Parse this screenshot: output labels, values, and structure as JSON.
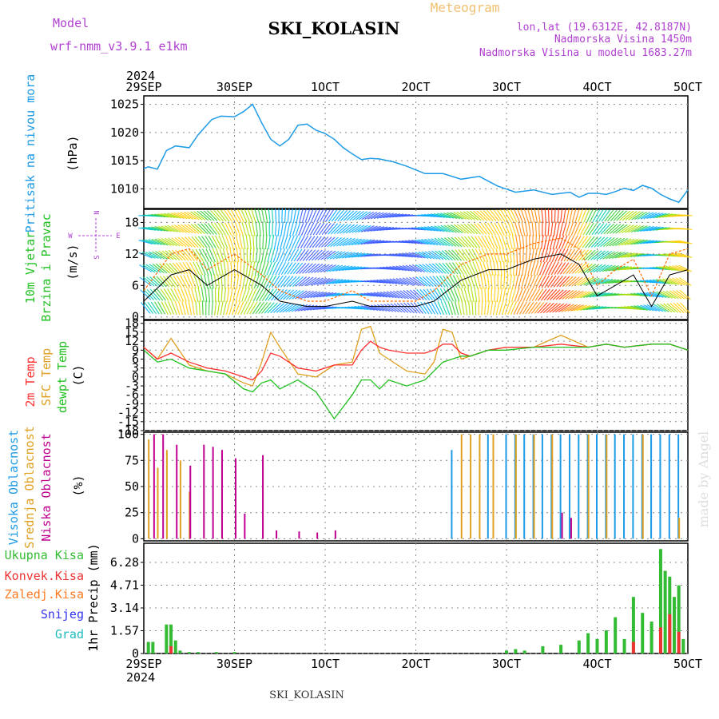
{
  "header": {
    "model_label": "Model",
    "model_name": "wrf-nmm_v3.9.1  e1km",
    "title": "SKI_KOLASIN",
    "meteogram_label": "Meteogram",
    "location": "lon,lat (19.6312E, 42.8187N)",
    "elevation": "Nadmorska Visina 1450m",
    "model_elevation": "Nadmorska Visina u modelu 1683.27m",
    "footer_title": "SKI_KOLASIN",
    "credit": "made by Angel"
  },
  "colors": {
    "pressure": "#1e9be6",
    "wind_speed_line": "#000000",
    "wind_gust": "#ff6a00",
    "temp2m": "#ff3030",
    "sfc_temp": "#e0a020",
    "dewpoint": "#22c022",
    "high_cloud": "#1e9be6",
    "mid_cloud": "#e0a020",
    "low_cloud": "#c00090",
    "total_precip": "#33bb33",
    "conv_precip": "#ee3333",
    "frozen_precip": "#ff7a22",
    "snow": "#3333ee",
    "graupel": "#22bbbb",
    "credit": "#dddddd"
  },
  "x_axis": {
    "year": "2024",
    "ticks": [
      "29SEP",
      "30SEP",
      "1OCT",
      "2OCT",
      "3OCT",
      "4OCT",
      "5OCT"
    ]
  },
  "panels": {
    "pressure": {
      "ylabel1": "Pritisak na nivou mora",
      "unit": "(hPa)",
      "ticks": [
        "1025",
        "1020",
        "1015",
        "1010"
      ]
    },
    "wind": {
      "ylabel1": "10m Vjetar",
      "ylabel2": "Brzina i Pravac",
      "unit": "(m/s)",
      "ticks": [
        "18",
        "12",
        "6",
        "0"
      ],
      "compass_n": "N",
      "compass_s": "S",
      "compass_w": "W",
      "compass_e": "E"
    },
    "temperature": {
      "ylabel1": "2m Temp",
      "ylabel2": "SFC Temp",
      "ylabel3": "dewpt Temp",
      "unit": "(C)",
      "ticks": [
        "18",
        "15",
        "12",
        "9",
        "6",
        "3",
        "0",
        "-3",
        "-6",
        "-9",
        "-12",
        "-15",
        "-18"
      ]
    },
    "clouds": {
      "ylabel1": "Visoka Oblacnost",
      "ylabel2": "Srednja Oblacnost",
      "ylabel3": "Niska Oblacnost",
      "unit": "(%)",
      "ticks": [
        "100",
        "75",
        "50",
        "25",
        "0"
      ]
    },
    "precip": {
      "legend1": "Ukupna Kisa",
      "legend2": "Konvek.Kisa",
      "legend3": "Zaledj.Kisa",
      "legend4": "Snijeg",
      "legend5": "Grad",
      "ylabel": "1hr Precip (mm)",
      "ticks": [
        "6.28",
        "4.71",
        "3.14",
        "1.57",
        "0"
      ]
    }
  },
  "chart_data": [
    {
      "type": "line",
      "title": "Pritisak na nivou mora",
      "ylabel": "(hPa)",
      "ylim": [
        1006.5,
        1026.5
      ],
      "x_unit": "days since 29SEP 00UTC",
      "series": [
        {
          "name": "Pritisak na nivou mora",
          "x": [
            0,
            0.05,
            0.15,
            0.25,
            0.35,
            0.5,
            0.6,
            0.75,
            0.85,
            1.0,
            1.1,
            1.2,
            1.3,
            1.4,
            1.5,
            1.6,
            1.7,
            1.8,
            1.9,
            2.0,
            2.1,
            2.2,
            2.3,
            2.4,
            2.5,
            2.6,
            2.75,
            2.9,
            3.1,
            3.3,
            3.5,
            3.7,
            3.9,
            4.1,
            4.3,
            4.5,
            4.7,
            4.8,
            4.9,
            5.0,
            5.1,
            5.2,
            5.3,
            5.4,
            5.5,
            5.6,
            5.7,
            5.8,
            5.9,
            6.0
          ],
          "y": [
            1013.6,
            1013.9,
            1013.5,
            1016.8,
            1017.6,
            1017.3,
            1019.6,
            1022.3,
            1022.9,
            1022.8,
            1023.7,
            1025.0,
            1021.7,
            1018.8,
            1017.6,
            1018.8,
            1021.3,
            1021.5,
            1020.4,
            1019.8,
            1018.8,
            1017.3,
            1016.2,
            1015.2,
            1015.4,
            1015.3,
            1014.8,
            1014.0,
            1012.7,
            1012.7,
            1011.7,
            1012.2,
            1010.5,
            1009.4,
            1009.8,
            1009.0,
            1009.4,
            1008.5,
            1009.2,
            1009.2,
            1009.0,
            1009.5,
            1010.1,
            1009.7,
            1010.6,
            1010.1,
            1009.0,
            1008.2,
            1007.6,
            1009.8
          ]
        }
      ]
    },
    {
      "type": "line",
      "title": "10m Vjetar Brzina i Pravac",
      "ylabel": "(m/s)",
      "ylim": [
        -0.5,
        20.5
      ],
      "series": [
        {
          "name": "10m Vjetar",
          "x": [
            0,
            0.3,
            0.5,
            0.7,
            1.0,
            1.3,
            1.5,
            1.8,
            2.0,
            2.3,
            2.5,
            3.0,
            3.2,
            3.5,
            3.8,
            4.0,
            4.3,
            4.6,
            4.8,
            5.0,
            5.2,
            5.4,
            5.6,
            5.8,
            6.0
          ],
          "y": [
            3,
            8,
            9,
            6,
            9,
            6,
            3,
            2,
            2,
            3,
            2,
            2,
            3,
            7,
            9,
            9,
            11,
            12,
            10,
            4,
            6,
            8,
            2,
            8,
            9
          ]
        },
        {
          "name": "gust",
          "x": [
            0,
            0.3,
            0.5,
            0.7,
            1.0,
            1.3,
            1.5,
            1.8,
            2.0,
            2.3,
            2.5,
            3.0,
            3.2,
            3.5,
            3.8,
            4.0,
            4.3,
            4.6,
            4.8,
            5.0,
            5.2,
            5.4,
            5.6,
            5.8,
            6.0
          ],
          "y": [
            5,
            12,
            13,
            9,
            12,
            8,
            5,
            3,
            3,
            5,
            3,
            3,
            5,
            10,
            12,
            12,
            14,
            15,
            13,
            6,
            9,
            11,
            4,
            12,
            13
          ]
        }
      ]
    },
    {
      "type": "line",
      "title": "2m Temp / SFC Temp / dewpt Temp",
      "ylabel": "(C)",
      "ylim": [
        -18,
        19
      ],
      "series": [
        {
          "name": "2m Temp",
          "x": [
            0,
            0.15,
            0.3,
            0.5,
            0.7,
            0.9,
            1.1,
            1.2,
            1.3,
            1.4,
            1.5,
            1.7,
            1.9,
            2.1,
            2.3,
            2.4,
            2.5,
            2.6,
            2.7,
            2.9,
            3.1,
            3.2,
            3.3,
            3.4,
            3.5,
            3.6,
            3.8,
            4.0,
            4.3,
            4.6,
            4.9,
            5.1,
            5.3,
            5.6,
            5.8,
            6.0
          ],
          "y": [
            10,
            6,
            8,
            5,
            3,
            2,
            0,
            -1,
            2,
            8,
            7,
            3,
            2,
            4,
            4,
            9,
            12,
            10,
            9,
            8,
            8,
            9,
            11,
            11,
            8,
            7,
            9,
            10,
            10,
            11,
            10,
            11,
            10,
            11,
            11,
            9
          ]
        },
        {
          "name": "SFC Temp",
          "x": [
            0,
            0.15,
            0.3,
            0.5,
            0.7,
            0.9,
            1.1,
            1.2,
            1.3,
            1.4,
            1.5,
            1.7,
            1.9,
            2.1,
            2.3,
            2.4,
            2.5,
            2.6,
            2.7,
            2.9,
            3.1,
            3.2,
            3.3,
            3.4,
            3.5,
            3.6,
            3.8,
            4.0,
            4.3,
            4.6,
            4.9,
            5.1,
            5.3,
            5.6,
            5.8,
            6.0
          ],
          "y": [
            10,
            6,
            13,
            4,
            2,
            1,
            -2,
            -3,
            5,
            15,
            10,
            1,
            0,
            4,
            5,
            16,
            17,
            8,
            6,
            2,
            1,
            5,
            16,
            15,
            6,
            7,
            9,
            10,
            10,
            14,
            10,
            11,
            10,
            11,
            11,
            9
          ]
        },
        {
          "name": "dewpt Temp",
          "x": [
            0,
            0.15,
            0.3,
            0.5,
            0.7,
            0.9,
            1.1,
            1.2,
            1.3,
            1.4,
            1.5,
            1.7,
            1.9,
            2.1,
            2.3,
            2.4,
            2.5,
            2.6,
            2.7,
            2.9,
            3.1,
            3.2,
            3.3,
            3.4,
            3.5,
            3.6,
            3.8,
            4.0,
            4.3,
            4.6,
            4.9,
            5.1,
            5.3,
            5.6,
            5.8,
            6.0
          ],
          "y": [
            9,
            5,
            6,
            3,
            2,
            1,
            -4,
            -5,
            -2,
            -1,
            -4,
            -1,
            -5,
            -14,
            -6,
            -1,
            -1,
            -4,
            -1,
            -3,
            -1,
            2,
            5,
            6,
            7,
            7,
            9,
            9,
            10,
            10,
            10,
            11,
            10,
            11,
            11,
            9
          ]
        }
      ]
    },
    {
      "type": "bar",
      "title": "Visoka / Srednja / Niska Oblacnost",
      "ylabel": "(%)",
      "ylim": [
        0,
        100
      ],
      "series": [
        {
          "name": "Visoka Oblacnost",
          "x": [
            3.4,
            3.8,
            4.0,
            4.1,
            4.2,
            4.3,
            4.4,
            4.5,
            4.6,
            4.7,
            4.8,
            4.9,
            5.0,
            5.1,
            5.2,
            5.3,
            5.4,
            5.5,
            5.6,
            5.7,
            5.8,
            5.9
          ],
          "values": [
            85,
            100,
            100,
            100,
            100,
            100,
            100,
            100,
            100,
            100,
            100,
            100,
            100,
            100,
            100,
            100,
            100,
            100,
            100,
            100,
            100,
            100
          ]
        },
        {
          "name": "Srednja Oblacnost",
          "x": [
            0.05,
            0.15,
            0.25,
            0.4,
            0.5,
            3.5,
            3.6,
            3.7,
            3.85,
            4.1,
            4.3,
            4.5,
            4.9,
            5.1,
            5.5,
            5.9
          ],
          "values": [
            95,
            68,
            85,
            75,
            45,
            100,
            100,
            100,
            100,
            100,
            100,
            100,
            100,
            100,
            100,
            20
          ]
        },
        {
          "name": "Niska Oblacnost",
          "x": [
            0.1,
            0.2,
            0.35,
            0.5,
            0.65,
            0.75,
            0.85,
            1.0,
            1.1,
            1.3,
            1.45,
            1.7,
            1.9,
            2.1,
            4.6,
            4.7
          ],
          "values": [
            100,
            100,
            90,
            70,
            90,
            88,
            85,
            77,
            24,
            80,
            8,
            7,
            6,
            8,
            25,
            20
          ]
        }
      ]
    },
    {
      "type": "bar",
      "title": "1hr Precip",
      "ylabel": "1hr Precip (mm)",
      "ylim": [
        0,
        7.6
      ],
      "series": [
        {
          "name": "Ukupna Kisa",
          "x": [
            0.05,
            0.1,
            0.25,
            0.3,
            0.35,
            0.4,
            0.5,
            0.6,
            0.8,
            1.0,
            4.0,
            4.1,
            4.2,
            4.4,
            4.6,
            4.8,
            4.9,
            5.0,
            5.1,
            5.2,
            5.3,
            5.4,
            5.5,
            5.6,
            5.7,
            5.75,
            5.8,
            5.85,
            5.9,
            5.95
          ],
          "values": [
            0.8,
            0.8,
            2.0,
            2.0,
            0.9,
            0.2,
            0.1,
            0.1,
            0.1,
            0.1,
            0.2,
            0.3,
            0.2,
            0.5,
            0.6,
            0.9,
            1.4,
            1.0,
            1.6,
            2.5,
            1.0,
            3.9,
            2.8,
            2.2,
            7.2,
            5.7,
            5.3,
            3.9,
            4.7,
            1.0
          ]
        },
        {
          "name": "Konvek.Kisa",
          "x": [
            0.3,
            5.4,
            5.7,
            5.8,
            5.9
          ],
          "values": [
            0.5,
            0.8,
            1.8,
            2.7,
            1.5
          ]
        }
      ]
    }
  ]
}
